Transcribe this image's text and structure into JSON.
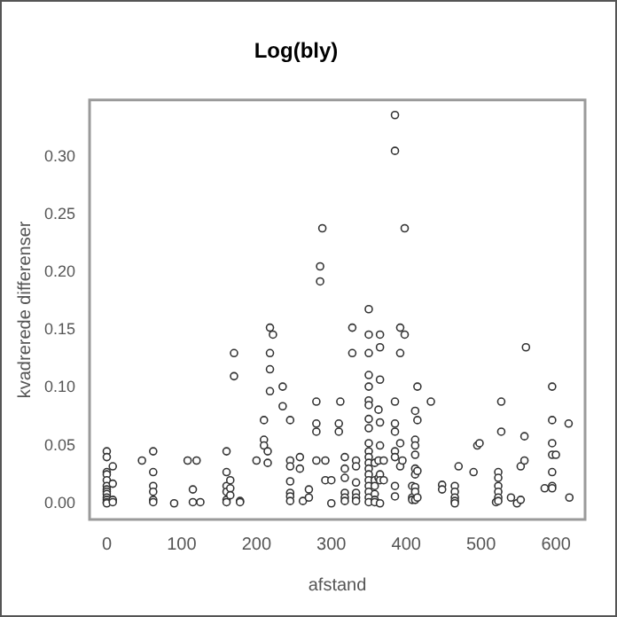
{
  "chart_data": {
    "type": "scatter",
    "title": "Log(bly)",
    "xlabel": "afstand",
    "ylabel": "kvadrerede differenser",
    "x": [
      0,
      0,
      0,
      0,
      0,
      0,
      0,
      0,
      0,
      0,
      0,
      0,
      0,
      8,
      8,
      8,
      8,
      47,
      62,
      62,
      62,
      62,
      62,
      62,
      90,
      108,
      115,
      115,
      120,
      125,
      160,
      160,
      160,
      160,
      160,
      160,
      165,
      165,
      165,
      170,
      170,
      178,
      178,
      200,
      210,
      210,
      210,
      215,
      215,
      218,
      218,
      218,
      218,
      222,
      235,
      235,
      245,
      245,
      245,
      245,
      245,
      245,
      245,
      258,
      258,
      262,
      270,
      270,
      280,
      280,
      280,
      280,
      285,
      285,
      288,
      292,
      292,
      300,
      300,
      310,
      310,
      312,
      318,
      318,
      318,
      318,
      318,
      318,
      328,
      328,
      333,
      333,
      333,
      333,
      333,
      333,
      350,
      350,
      350,
      350,
      350,
      350,
      350,
      350,
      350,
      350,
      350,
      350,
      350,
      350,
      350,
      350,
      350,
      350,
      350,
      350,
      358,
      358,
      358,
      358,
      358,
      358,
      363,
      363,
      363,
      365,
      365,
      365,
      365,
      365,
      365,
      365,
      365,
      370,
      370,
      385,
      385,
      385,
      385,
      385,
      385,
      385,
      385,
      385,
      392,
      392,
      392,
      392,
      398,
      398,
      395,
      408,
      408,
      408,
      412,
      412,
      412,
      412,
      412,
      412,
      412,
      412,
      412,
      415,
      415,
      415,
      415,
      433,
      448,
      448,
      465,
      465,
      465,
      465,
      465,
      470,
      490,
      495,
      498,
      520,
      523,
      523,
      523,
      523,
      523,
      523,
      527,
      527,
      540,
      548,
      553,
      553,
      558,
      558,
      560,
      585,
      595,
      595,
      595,
      595,
      595,
      595,
      595,
      600,
      617,
      618
    ],
    "values": [
      0.045,
      0.04,
      0.027,
      0.025,
      0.02,
      0.015,
      0.012,
      0.01,
      0.008,
      0.005,
      0.003,
      0.001,
      0,
      0.032,
      0.017,
      0.003,
      0.001,
      0.037,
      0.045,
      0.027,
      0.015,
      0.01,
      0.003,
      0.001,
      0,
      0.037,
      0.012,
      0.001,
      0.037,
      0.001,
      0.045,
      0.027,
      0.015,
      0.01,
      0.003,
      0.001,
      0.02,
      0.013,
      0.007,
      0.13,
      0.11,
      0.002,
      0.001,
      0.037,
      0.072,
      0.055,
      0.05,
      0.045,
      0.035,
      0.152,
      0.13,
      0.116,
      0.097,
      0.146,
      0.101,
      0.084,
      0.072,
      0.037,
      0.032,
      0.019,
      0.009,
      0.006,
      0.002,
      0.04,
      0.03,
      0.002,
      0.012,
      0.005,
      0.088,
      0.069,
      0.062,
      0.037,
      0.205,
      0.192,
      0.238,
      0.037,
      0.02,
      0.02,
      0,
      0.069,
      0.062,
      0.088,
      0.04,
      0.03,
      0.022,
      0.009,
      0.005,
      0.002,
      0.152,
      0.13,
      0.037,
      0.032,
      0.018,
      0.009,
      0.005,
      0.002,
      0.168,
      0.146,
      0.13,
      0.111,
      0.101,
      0.089,
      0.085,
      0.073,
      0.065,
      0.052,
      0.045,
      0.04,
      0.035,
      0.03,
      0.025,
      0.02,
      0.015,
      0.01,
      0.005,
      0.001,
      0.035,
      0.02,
      0.015,
      0.008,
      0.003,
      0.001,
      0.081,
      0.037,
      0.022,
      0.146,
      0.135,
      0.107,
      0.07,
      0.05,
      0.025,
      0.02,
      0,
      0.037,
      0.02,
      0.336,
      0.305,
      0.088,
      0.069,
      0.062,
      0.045,
      0.04,
      0.015,
      0.006,
      0.152,
      0.13,
      0.052,
      0.032,
      0.238,
      0.146,
      0.037,
      0.015,
      0.005,
      0.003,
      0.08,
      0.055,
      0.05,
      0.042,
      0.03,
      0.025,
      0.014,
      0.01,
      0.003,
      0.101,
      0.072,
      0.028,
      0.005,
      0.088,
      0.016,
      0.012,
      0.015,
      0.01,
      0.005,
      0.002,
      0,
      0.032,
      0.027,
      0.05,
      0.052,
      0.001,
      0.027,
      0.022,
      0.015,
      0.01,
      0.005,
      0.002,
      0.088,
      0.062,
      0.005,
      0,
      0.032,
      0.003,
      0.058,
      0.037,
      0.135,
      0.013,
      0.101,
      0.072,
      0.052,
      0.042,
      0.027,
      0.015,
      0.013,
      0.042,
      0.069,
      0.005
    ],
    "color": "#333333",
    "marker": "circle",
    "grid": false,
    "legend": false,
    "xlim": [
      -23,
      639
    ],
    "xticks": [
      0,
      100,
      200,
      300,
      400,
      500,
      600
    ],
    "ylim": [
      -0.014,
      0.349
    ],
    "yticks": [
      {
        "value": 0,
        "label": "0.00"
      },
      {
        "value": 0.05,
        "label": "0.05"
      },
      {
        "value": 0.1,
        "label": "0.10"
      },
      {
        "value": 0.15,
        "label": "0.15"
      },
      {
        "value": 0.2,
        "label": "0.20"
      },
      {
        "value": 0.25,
        "label": "0.25"
      },
      {
        "value": 0.3,
        "label": "0.30"
      }
    ]
  }
}
